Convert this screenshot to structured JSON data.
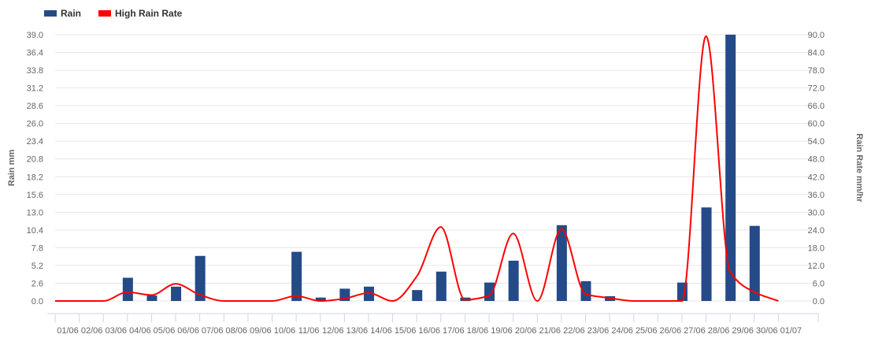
{
  "chart_data": {
    "type": "bar",
    "legend_position": "top-left",
    "grid": true,
    "categories": [
      "01/06",
      "02/06",
      "03/06",
      "04/06",
      "05/06",
      "06/06",
      "07/06",
      "08/06",
      "09/06",
      "10/06",
      "11/06",
      "12/06",
      "13/06",
      "14/06",
      "15/06",
      "16/06",
      "17/06",
      "18/06",
      "19/06",
      "20/06",
      "21/06",
      "22/06",
      "23/06",
      "24/06",
      "25/06",
      "26/06",
      "27/06",
      "28/06",
      "29/06",
      "30/06",
      "01/07"
    ],
    "series": [
      {
        "name": "Rain",
        "type": "bar",
        "axis": "left",
        "color": "#244b87",
        "values": [
          0,
          0,
          0,
          3.4,
          0.8,
          2.1,
          6.6,
          0,
          0,
          0,
          7.2,
          0.5,
          1.8,
          2.1,
          0,
          1.6,
          4.3,
          0.5,
          2.7,
          5.9,
          0,
          11.1,
          2.9,
          0.7,
          0,
          0,
          2.7,
          13.7,
          39.0,
          11.0,
          0
        ]
      },
      {
        "name": "High Rain Rate",
        "type": "line",
        "smooth": true,
        "axis": "right",
        "color": "#ff0000",
        "values": [
          0,
          0,
          0,
          3.0,
          2.0,
          5.8,
          2.1,
          0,
          0,
          0,
          1.7,
          0,
          0.8,
          2.7,
          0,
          8.3,
          25.0,
          0.4,
          1.8,
          22.8,
          0,
          24.3,
          2.3,
          1.0,
          0,
          0,
          0,
          89.5,
          9.8,
          3.0,
          0
        ]
      }
    ],
    "y_left": {
      "label": "Rain mm",
      "range": [
        0,
        39.0
      ],
      "ticks": [
        "0.0",
        "2.6",
        "5.2",
        "7.8",
        "10.4",
        "13.0",
        "15.6",
        "18.2",
        "20.8",
        "23.4",
        "26.0",
        "28.6",
        "31.2",
        "33.8",
        "36.4",
        "39.0"
      ]
    },
    "y_right": {
      "label": "Rain Rate mm/hr",
      "range": [
        0,
        90.0
      ],
      "ticks": [
        "0.0",
        "6.0",
        "12.0",
        "18.0",
        "24.0",
        "30.0",
        "36.0",
        "42.0",
        "48.0",
        "54.0",
        "60.0",
        "66.0",
        "72.0",
        "78.0",
        "84.0",
        "90.0"
      ]
    }
  }
}
